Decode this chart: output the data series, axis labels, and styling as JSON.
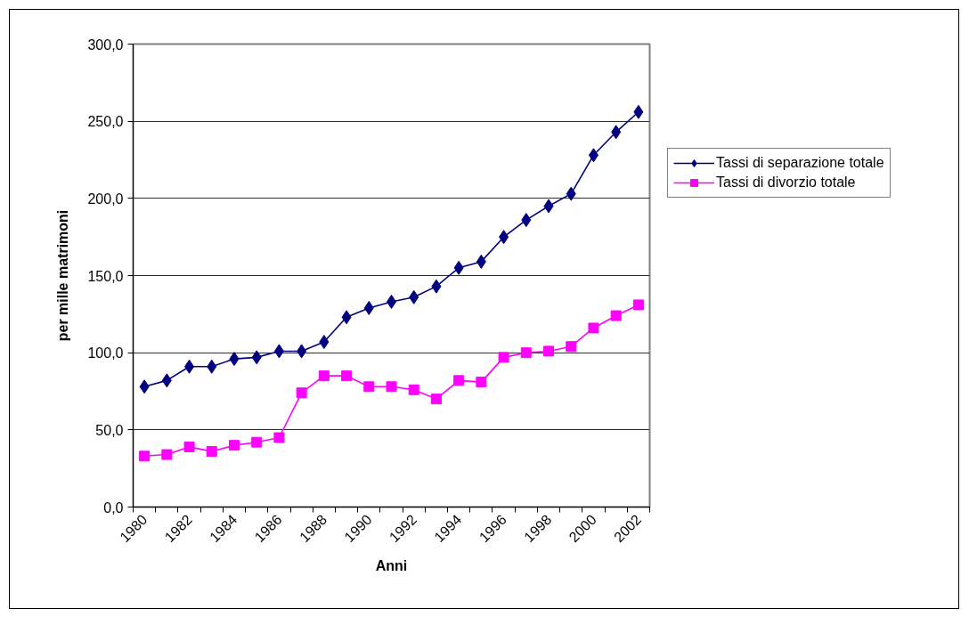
{
  "chart_data": {
    "type": "line",
    "xlabel": "Anni",
    "ylabel": "per mille matrimoni",
    "categories": [
      "1980",
      null,
      "1982",
      null,
      "1984",
      null,
      "1986",
      null,
      "1988",
      null,
      "1990",
      null,
      "1992",
      null,
      "1994",
      null,
      "1996",
      null,
      "1998",
      null,
      "2000",
      null,
      "2002"
    ],
    "series": [
      {
        "name": "Tassi di separazione totale",
        "color": "#000080",
        "marker": "diamond",
        "values": [
          78,
          82,
          91,
          91,
          96,
          97,
          101,
          101,
          107,
          123,
          129,
          133,
          136,
          143,
          155,
          159,
          175,
          186,
          195,
          203,
          228,
          243,
          256
        ]
      },
      {
        "name": "Tassi di divorzio totale",
        "color": "#ff00ff",
        "marker": "square",
        "values": [
          33,
          34,
          39,
          36,
          40,
          42,
          45,
          74,
          85,
          85,
          78,
          78,
          76,
          70,
          82,
          81,
          97,
          100,
          101,
          104,
          116,
          124,
          131
        ]
      }
    ],
    "ylim": [
      0,
      300
    ],
    "yticks": [
      {
        "value": 0,
        "label": "0,0"
      },
      {
        "value": 50,
        "label": "50,0"
      },
      {
        "value": 100,
        "label": "100,0"
      },
      {
        "value": 150,
        "label": "150,0"
      },
      {
        "value": 200,
        "label": "200,0"
      },
      {
        "value": 250,
        "label": "250,0"
      },
      {
        "value": 300,
        "label": "300,0"
      }
    ],
    "grid": "y",
    "legend": "right",
    "line_style": "solid"
  }
}
